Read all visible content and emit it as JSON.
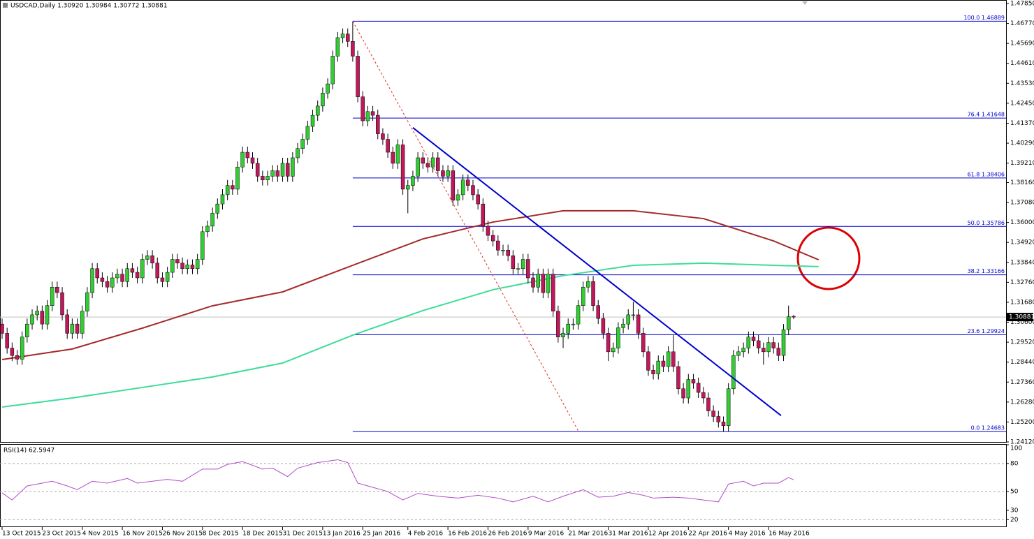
{
  "chart_data": {
    "type": "candlestick",
    "title": "USDCAD,Daily  1.30920 1.30984 1.30772 1.30881",
    "up_color": "#32cd32",
    "down_color": "#c2185b",
    "open": [
      1.305,
      1.3,
      1.292,
      1.288,
      1.286,
      1.298,
      1.305,
      1.31,
      1.312,
      1.305,
      1.315,
      1.325,
      1.322,
      1.31,
      1.3,
      1.305,
      1.3,
      1.312,
      1.322,
      1.335,
      1.33,
      1.328,
      1.325,
      1.33,
      1.332,
      1.328,
      1.335,
      1.333,
      1.33,
      1.34,
      1.342,
      1.338,
      1.33,
      1.328,
      1.333,
      1.34,
      1.338,
      1.335,
      1.337,
      1.335,
      1.34,
      1.355,
      1.358,
      1.365,
      1.37,
      1.375,
      1.38,
      1.378,
      1.39,
      1.398,
      1.395,
      1.392,
      1.385,
      1.383,
      1.385,
      1.388,
      1.385,
      1.392,
      1.385,
      1.395,
      1.4,
      1.405,
      1.412,
      1.418,
      1.423,
      1.43,
      1.435,
      1.45,
      1.46,
      1.462,
      1.458,
      1.45,
      1.428,
      1.415,
      1.42,
      1.418,
      1.408,
      1.405,
      1.398,
      1.392,
      1.402,
      1.378,
      1.38,
      1.385,
      1.395,
      1.392,
      1.39,
      1.395,
      1.388,
      1.385,
      1.388,
      1.372,
      1.375,
      1.383,
      1.38,
      1.375,
      1.37,
      1.358,
      1.353,
      1.35,
      1.345,
      1.345,
      1.342,
      1.335,
      1.335,
      1.34,
      1.33,
      1.325,
      1.332,
      1.322,
      1.332,
      1.312,
      1.298,
      1.3,
      1.305,
      1.305,
      1.315,
      1.325,
      1.328,
      1.315,
      1.308,
      1.3,
      1.29,
      1.292,
      1.303,
      1.305,
      1.31,
      1.31,
      1.3,
      1.29,
      1.28,
      1.278,
      1.285,
      1.282,
      1.29,
      1.282,
      1.27,
      1.265,
      1.275,
      1.273,
      1.268,
      1.265,
      1.258,
      1.255,
      1.252,
      1.25,
      1.27,
      1.288,
      1.29,
      1.292,
      1.298,
      1.296,
      1.292,
      1.29,
      1.295,
      1.292,
      1.288,
      1.302,
      1.3092
    ],
    "high": [
      1.308,
      1.303,
      1.295,
      1.291,
      1.301,
      1.308,
      1.313,
      1.315,
      1.315,
      1.318,
      1.328,
      1.328,
      1.325,
      1.313,
      1.308,
      1.308,
      1.315,
      1.325,
      1.338,
      1.338,
      1.333,
      1.331,
      1.333,
      1.335,
      1.335,
      1.338,
      1.338,
      1.336,
      1.343,
      1.345,
      1.345,
      1.341,
      1.333,
      1.336,
      1.343,
      1.343,
      1.341,
      1.34,
      1.34,
      1.343,
      1.358,
      1.361,
      1.368,
      1.373,
      1.378,
      1.383,
      1.383,
      1.393,
      1.401,
      1.401,
      1.398,
      1.395,
      1.388,
      1.388,
      1.391,
      1.391,
      1.395,
      1.395,
      1.398,
      1.403,
      1.408,
      1.415,
      1.421,
      1.426,
      1.433,
      1.438,
      1.453,
      1.463,
      1.465,
      1.465,
      1.46889,
      1.453,
      1.431,
      1.423,
      1.423,
      1.421,
      1.411,
      1.408,
      1.401,
      1.405,
      1.405,
      1.383,
      1.388,
      1.398,
      1.398,
      1.395,
      1.398,
      1.398,
      1.391,
      1.391,
      1.391,
      1.378,
      1.386,
      1.386,
      1.383,
      1.378,
      1.373,
      1.361,
      1.356,
      1.353,
      1.348,
      1.348,
      1.345,
      1.338,
      1.343,
      1.343,
      1.333,
      1.335,
      1.335,
      1.335,
      1.335,
      1.315,
      1.303,
      1.308,
      1.308,
      1.318,
      1.328,
      1.331,
      1.331,
      1.318,
      1.311,
      1.303,
      1.295,
      1.306,
      1.308,
      1.313,
      1.317,
      1.313,
      1.303,
      1.293,
      1.283,
      1.288,
      1.288,
      1.293,
      1.299,
      1.285,
      1.273,
      1.278,
      1.278,
      1.276,
      1.271,
      1.268,
      1.261,
      1.258,
      1.255,
      1.273,
      1.291,
      1.293,
      1.295,
      1.301,
      1.301,
      1.299,
      1.295,
      1.298,
      1.298,
      1.295,
      1.305,
      1.315,
      1.30984
    ],
    "low": [
      1.297,
      1.289,
      1.285,
      1.283,
      1.283,
      1.295,
      1.302,
      1.307,
      1.302,
      1.302,
      1.312,
      1.319,
      1.307,
      1.297,
      1.297,
      1.297,
      1.297,
      1.309,
      1.319,
      1.327,
      1.325,
      1.322,
      1.322,
      1.327,
      1.325,
      1.325,
      1.33,
      1.327,
      1.327,
      1.337,
      1.335,
      1.327,
      1.325,
      1.325,
      1.33,
      1.335,
      1.332,
      1.332,
      1.332,
      1.332,
      1.337,
      1.352,
      1.355,
      1.362,
      1.367,
      1.372,
      1.375,
      1.375,
      1.387,
      1.392,
      1.389,
      1.382,
      1.38,
      1.38,
      1.382,
      1.382,
      1.382,
      1.382,
      1.382,
      1.392,
      1.397,
      1.402,
      1.409,
      1.415,
      1.42,
      1.427,
      1.432,
      1.447,
      1.457,
      1.455,
      1.447,
      1.425,
      1.412,
      1.412,
      1.415,
      1.405,
      1.402,
      1.395,
      1.389,
      1.389,
      1.375,
      1.365,
      1.377,
      1.382,
      1.389,
      1.387,
      1.387,
      1.385,
      1.382,
      1.382,
      1.369,
      1.369,
      1.372,
      1.377,
      1.372,
      1.367,
      1.355,
      1.35,
      1.347,
      1.342,
      1.342,
      1.339,
      1.332,
      1.332,
      1.332,
      1.327,
      1.322,
      1.322,
      1.319,
      1.319,
      1.309,
      1.295,
      1.292,
      1.297,
      1.302,
      1.302,
      1.312,
      1.322,
      1.312,
      1.305,
      1.297,
      1.285,
      1.287,
      1.289,
      1.3,
      1.302,
      1.307,
      1.297,
      1.287,
      1.277,
      1.275,
      1.275,
      1.279,
      1.279,
      1.279,
      1.267,
      1.262,
      1.262,
      1.27,
      1.265,
      1.262,
      1.255,
      1.252,
      1.249,
      1.24683,
      1.247,
      1.267,
      1.285,
      1.287,
      1.289,
      1.293,
      1.289,
      1.283,
      1.287,
      1.289,
      1.285,
      1.285,
      1.299,
      1.30772
    ],
    "close": [
      1.3,
      1.292,
      1.288,
      1.286,
      1.298,
      1.305,
      1.31,
      1.312,
      1.305,
      1.315,
      1.325,
      1.322,
      1.31,
      1.3,
      1.305,
      1.3,
      1.312,
      1.322,
      1.335,
      1.33,
      1.328,
      1.325,
      1.33,
      1.332,
      1.328,
      1.335,
      1.333,
      1.33,
      1.34,
      1.342,
      1.338,
      1.33,
      1.328,
      1.333,
      1.34,
      1.338,
      1.335,
      1.337,
      1.335,
      1.34,
      1.355,
      1.358,
      1.365,
      1.37,
      1.375,
      1.38,
      1.378,
      1.39,
      1.398,
      1.395,
      1.392,
      1.385,
      1.383,
      1.385,
      1.388,
      1.385,
      1.392,
      1.385,
      1.395,
      1.4,
      1.405,
      1.412,
      1.418,
      1.423,
      1.43,
      1.435,
      1.45,
      1.46,
      1.462,
      1.458,
      1.45,
      1.428,
      1.415,
      1.42,
      1.418,
      1.408,
      1.405,
      1.398,
      1.392,
      1.402,
      1.378,
      1.38,
      1.385,
      1.395,
      1.392,
      1.39,
      1.395,
      1.388,
      1.385,
      1.388,
      1.372,
      1.375,
      1.383,
      1.38,
      1.375,
      1.37,
      1.358,
      1.353,
      1.35,
      1.345,
      1.345,
      1.342,
      1.335,
      1.335,
      1.34,
      1.33,
      1.325,
      1.332,
      1.322,
      1.332,
      1.312,
      1.298,
      1.3,
      1.305,
      1.305,
      1.315,
      1.325,
      1.328,
      1.315,
      1.308,
      1.3,
      1.29,
      1.292,
      1.303,
      1.305,
      1.31,
      1.31,
      1.3,
      1.29,
      1.28,
      1.278,
      1.285,
      1.282,
      1.29,
      1.282,
      1.27,
      1.265,
      1.275,
      1.273,
      1.268,
      1.265,
      1.258,
      1.255,
      1.252,
      1.25,
      1.27,
      1.288,
      1.29,
      1.292,
      1.298,
      1.296,
      1.292,
      1.29,
      1.295,
      1.292,
      1.288,
      1.302,
      1.309,
      1.30881
    ],
    "ylim": [
      1.2412,
      1.4785
    ],
    "yticks": [
      {
        "value": 1.4785,
        "label": "1.47850"
      },
      {
        "value": 1.4677,
        "label": "1.46770"
      },
      {
        "value": 1.4569,
        "label": "1.45690"
      },
      {
        "value": 1.4461,
        "label": "1.44610"
      },
      {
        "value": 1.4353,
        "label": "1.43530"
      },
      {
        "value": 1.4245,
        "label": "1.42450"
      },
      {
        "value": 1.4137,
        "label": "1.41370"
      },
      {
        "value": 1.4029,
        "label": "1.40290"
      },
      {
        "value": 1.3921,
        "label": "1.39210"
      },
      {
        "value": 1.3816,
        "label": "1.38160"
      },
      {
        "value": 1.3708,
        "label": "1.37080"
      },
      {
        "value": 1.36,
        "label": "1.36000"
      },
      {
        "value": 1.3492,
        "label": "1.34920"
      },
      {
        "value": 1.3384,
        "label": "1.33840"
      },
      {
        "value": 1.3276,
        "label": "1.32760"
      },
      {
        "value": 1.3168,
        "label": "1.31680"
      },
      {
        "value": 1.306,
        "label": "1.30600"
      },
      {
        "value": 1.2952,
        "label": "1.29520"
      },
      {
        "value": 1.2844,
        "label": "1.28440"
      },
      {
        "value": 1.2736,
        "label": "1.27360"
      },
      {
        "value": 1.2628,
        "label": "1.26280"
      },
      {
        "value": 1.252,
        "label": "1.25200"
      },
      {
        "value": 1.2412,
        "label": "1.24120"
      }
    ],
    "xticks": [
      {
        "value": 0,
        "label": "13 Oct 2015"
      },
      {
        "value": 8,
        "label": "23 Oct 2015"
      },
      {
        "value": 16,
        "label": "4 Nov 2015"
      },
      {
        "value": 24,
        "label": "16 Nov 2015"
      },
      {
        "value": 32,
        "label": "26 Nov 2015"
      },
      {
        "value": 40,
        "label": "8 Dec 2015"
      },
      {
        "value": 48,
        "label": "18 Dec 2015"
      },
      {
        "value": 56,
        "label": "31 Dec 2015"
      },
      {
        "value": 64,
        "label": "13 Jan 2016"
      },
      {
        "value": 72,
        "label": "25 Jan 2016"
      },
      {
        "value": 81,
        "label": "4 Feb 2016"
      },
      {
        "value": 89,
        "label": "16 Feb 2016"
      },
      {
        "value": 97,
        "label": "26 Feb 2016"
      },
      {
        "value": 105,
        "label": "9 Mar 2016"
      },
      {
        "value": 113,
        "label": "21 Mar 2016"
      },
      {
        "value": 121,
        "label": "31 Mar 2016"
      },
      {
        "value": 129,
        "label": "12 Apr 2016"
      },
      {
        "value": 137,
        "label": "22 Apr 2016"
      },
      {
        "value": 145,
        "label": "4 May 2016"
      },
      {
        "value": 153,
        "label": "16 May 2016"
      }
    ],
    "moving_averages": [
      {
        "color": "#a52a2a",
        "x": [
          0,
          14,
          28,
          42,
          56,
          70,
          84,
          98,
          112,
          126,
          140,
          154,
          163
        ],
        "values": [
          1.2858,
          1.2915,
          1.3028,
          1.3149,
          1.3224,
          1.3368,
          1.3511,
          1.3602,
          1.3663,
          1.3663,
          1.3621,
          1.35,
          1.3398
        ]
      },
      {
        "color": "#3cdc9a",
        "x": [
          0,
          14,
          28,
          42,
          56,
          70,
          84,
          98,
          112,
          126,
          140,
          154,
          163
        ],
        "values": [
          1.2601,
          1.265,
          1.2707,
          1.2764,
          1.2839,
          1.299,
          1.3123,
          1.3236,
          1.3312,
          1.3368,
          1.338,
          1.3368,
          1.3361
        ]
      }
    ],
    "fib_start": 70,
    "fib_color": "#0000cd",
    "fib_levels": [
      {
        "value": 1.46889,
        "label": "100.0 1.46889"
      },
      {
        "value": 1.41648,
        "label": "76.4 1.41648"
      },
      {
        "value": 1.38406,
        "label": "61.8 1.38406"
      },
      {
        "value": 1.35786,
        "label": "50.0 1.35786"
      },
      {
        "value": 1.33166,
        "label": "38.2 1.33166"
      },
      {
        "value": 1.29924,
        "label": "23.6 1.29924"
      },
      {
        "value": 1.24683,
        "label": "0.0 1.24683"
      }
    ],
    "trendlines": [
      {
        "from": [
          82,
          1.4113
        ],
        "to": [
          155.5,
          1.2555
        ],
        "color": "#0000cd",
        "dashed": false
      },
      {
        "from": [
          70,
          1.46889
        ],
        "to": [
          115,
          1.2473
        ],
        "color": "#e03020",
        "dashed": true
      }
    ],
    "current_price": 1.30881,
    "indicator": {
      "title": "RSI(14) 62.5947",
      "color": "#b04cc8",
      "ylim": [
        12,
        100
      ],
      "yticks": [
        100,
        80,
        50,
        30,
        20
      ],
      "levels": [
        80,
        50,
        20
      ],
      "x": [
        0,
        2,
        5,
        8,
        10,
        13,
        15,
        18,
        21,
        25,
        27,
        30,
        33,
        36,
        40,
        43,
        45,
        48,
        52,
        54,
        57,
        59,
        63,
        67,
        69,
        71,
        73,
        77,
        80,
        83,
        87,
        91,
        95,
        99,
        102,
        106,
        109,
        112,
        116,
        119,
        122,
        125,
        128,
        130,
        134,
        137,
        140,
        143,
        145,
        148,
        150,
        152,
        155,
        157,
        158
      ],
      "values": [
        48.6,
        41,
        56,
        59,
        61,
        56,
        52,
        61,
        59,
        64,
        59,
        61,
        63,
        61,
        74,
        74,
        79,
        82,
        74,
        75,
        66,
        75,
        81,
        84,
        81,
        59,
        56,
        50,
        41,
        48,
        45,
        43,
        46,
        43,
        39,
        45,
        39,
        45,
        52,
        44,
        45,
        49,
        46,
        43,
        44,
        43,
        41,
        39,
        58,
        61,
        56,
        59,
        59,
        65,
        62.5947
      ]
    }
  }
}
